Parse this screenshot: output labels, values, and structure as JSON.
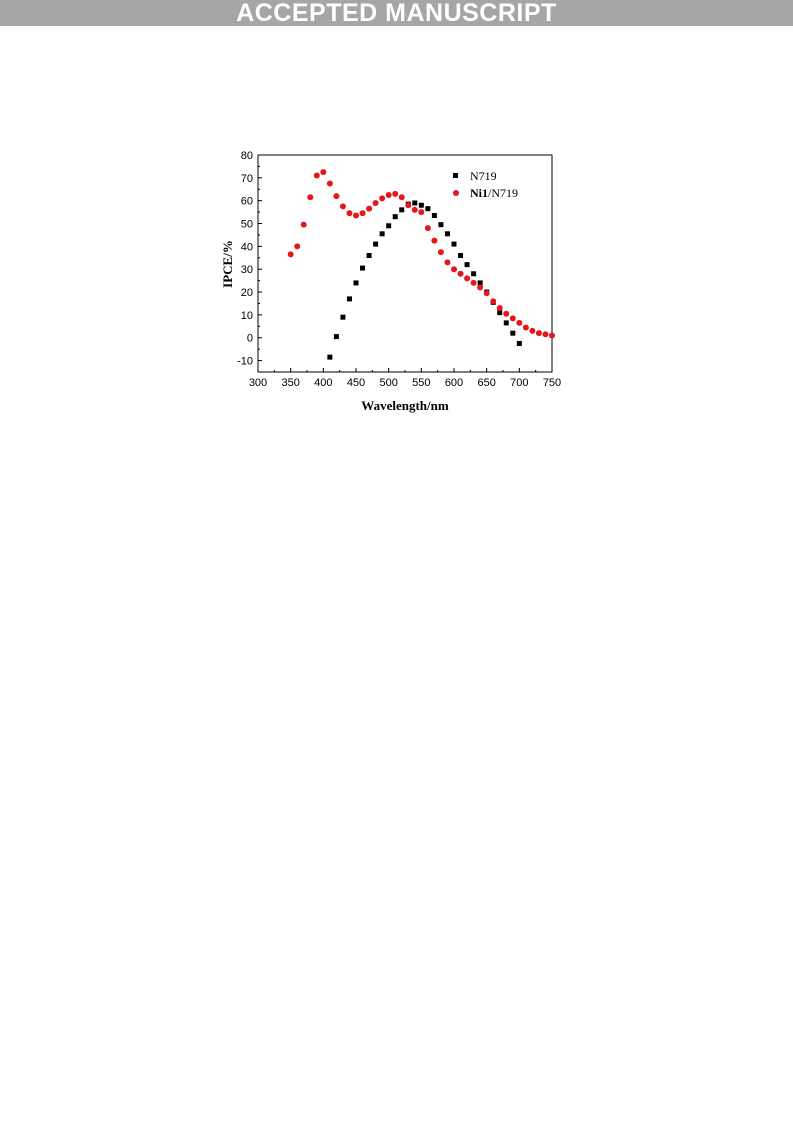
{
  "banner": {
    "text": "ACCEPTED MANUSCRIPT"
  },
  "chart_data": {
    "type": "scatter",
    "title": "",
    "xlabel": "Wavelength/nm",
    "ylabel": "IPCE/%",
    "xlim": [
      300,
      750
    ],
    "ylim": [
      -15,
      80
    ],
    "x_ticks": [
      300,
      350,
      400,
      450,
      500,
      550,
      600,
      650,
      700,
      750
    ],
    "y_ticks": [
      -10,
      0,
      10,
      20,
      30,
      40,
      50,
      60,
      70,
      80
    ],
    "grid": false,
    "legend_position": "top-right",
    "series": [
      {
        "name": "N719",
        "marker": "square",
        "color": "#000000",
        "x": [
          410,
          420,
          430,
          440,
          450,
          460,
          470,
          480,
          490,
          500,
          510,
          520,
          530,
          540,
          550,
          560,
          570,
          580,
          590,
          600,
          610,
          620,
          630,
          640,
          650,
          660,
          670,
          680,
          690,
          700
        ],
        "y": [
          -8.5,
          0.5,
          9,
          17,
          24,
          30.5,
          36,
          41,
          45.5,
          49,
          53,
          56,
          58.5,
          59,
          58,
          56.5,
          53.5,
          49.5,
          45.5,
          41,
          36,
          32,
          28,
          24,
          20,
          15.5,
          11,
          6.5,
          2,
          -2.5
        ]
      },
      {
        "name": "Ni1/N719",
        "name_bold_part": "Ni1",
        "name_rest": "/N719",
        "marker": "circle",
        "color": "#e8161b",
        "x": [
          350,
          360,
          370,
          380,
          390,
          400,
          410,
          420,
          430,
          440,
          450,
          460,
          470,
          480,
          490,
          500,
          510,
          520,
          530,
          540,
          550,
          560,
          570,
          580,
          590,
          600,
          610,
          620,
          630,
          640,
          650,
          660,
          670,
          680,
          690,
          700,
          710,
          720,
          730,
          740,
          750
        ],
        "y": [
          36.5,
          40,
          49.5,
          61.5,
          71,
          72.5,
          67.5,
          62,
          57.5,
          54.5,
          53.5,
          54.5,
          56.5,
          59,
          61,
          62.5,
          63,
          61.5,
          58,
          56,
          55,
          48,
          42.5,
          37.5,
          33,
          30,
          28,
          26,
          24,
          22,
          19.5,
          16,
          13,
          10.5,
          8.5,
          6.5,
          4.5,
          3,
          2,
          1.5,
          1
        ]
      }
    ]
  }
}
